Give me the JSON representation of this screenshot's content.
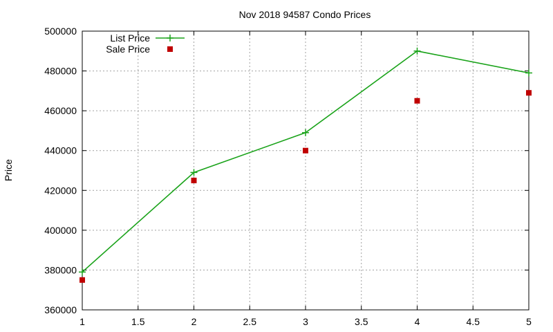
{
  "chart_data": {
    "type": "line",
    "title": "Nov 2018 94587 Condo Prices",
    "xlabel": "",
    "ylabel": "Price",
    "xlim": [
      1,
      5
    ],
    "ylim": [
      360000,
      500000
    ],
    "xticks": [
      1,
      1.5,
      2,
      2.5,
      3,
      3.5,
      4,
      4.5,
      5
    ],
    "yticks": [
      360000,
      380000,
      400000,
      420000,
      440000,
      460000,
      480000,
      500000
    ],
    "xtick_labels": [
      "1",
      "1.5",
      "2",
      "2.5",
      "3",
      "3.5",
      "4",
      "4.5",
      "5"
    ],
    "ytick_labels": [
      "360000",
      "380000",
      "400000",
      "420000",
      "440000",
      "460000",
      "480000",
      "500000"
    ],
    "grid": true,
    "legend_position": "top-left",
    "series": [
      {
        "name": "List Price",
        "style": "lines+points",
        "marker": "plus",
        "color": "#1aa31a",
        "x": [
          1,
          2,
          3,
          4,
          5
        ],
        "y": [
          379000,
          429000,
          449000,
          490000,
          479000
        ]
      },
      {
        "name": "Sale Price",
        "style": "points",
        "marker": "square",
        "color": "#c00000",
        "x": [
          1,
          2,
          3,
          4,
          5
        ],
        "y": [
          375000,
          425000,
          440000,
          465000,
          469000
        ]
      }
    ]
  }
}
